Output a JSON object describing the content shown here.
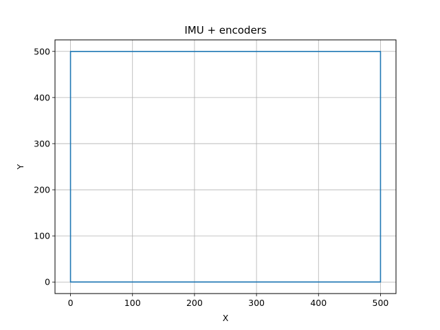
{
  "chart_data": {
    "type": "line",
    "title": "IMU + encoders",
    "xlabel": "X",
    "ylabel": "Y",
    "xlim": [
      -25,
      525
    ],
    "ylim": [
      -25,
      525
    ],
    "xticks": [
      0,
      100,
      200,
      300,
      400,
      500
    ],
    "yticks": [
      0,
      100,
      200,
      300,
      400,
      500
    ],
    "grid": true,
    "series": [
      {
        "color": "#1f77b4",
        "x": [
          0,
          500,
          500,
          0,
          0
        ],
        "y": [
          0,
          0,
          500,
          500,
          0
        ]
      }
    ]
  },
  "style": {
    "grid_color": "#b0b0b0",
    "axis_color": "#000000"
  }
}
